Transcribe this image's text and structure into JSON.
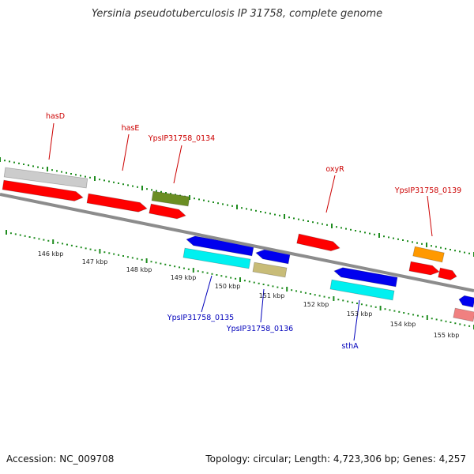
{
  "title": "Yersinia pseudotuberculosis IP 31758, complete genome",
  "footer": {
    "accession": "Accession: NC_009708",
    "summary": "Topology: circular; Length: 4,723,306 bp; Genes: 4,257"
  },
  "ticks": [
    "146 kbp",
    "147 kbp",
    "148 kbp",
    "149 kbp",
    "150 kbp",
    "151 kbp",
    "152 kbp",
    "153 kbp",
    "154 kbp",
    "155 kbp"
  ],
  "labels_forward": [
    "hasD",
    "hasE",
    "YpsIP31758_0134",
    "oxyR",
    "YpsIP31758_0139"
  ],
  "labels_reverse": [
    "YpsIP31758_0135",
    "YpsIP31758_0136",
    "sthA"
  ],
  "colors": {
    "backbone": "#8c8c8c",
    "tick_marks": "#1e8c1e",
    "forward_label": "#cc0000",
    "reverse_label": "#0000bb",
    "cds_red": "#ff0000",
    "cds_blue": "#0000ee",
    "cds_cyan": "#00f0f0",
    "cds_gray": "#cccccc",
    "cds_olive": "#6b8e23",
    "cds_khaki": "#c8bc78",
    "cds_orange": "#ff9900",
    "cds_pink": "#f08080"
  }
}
